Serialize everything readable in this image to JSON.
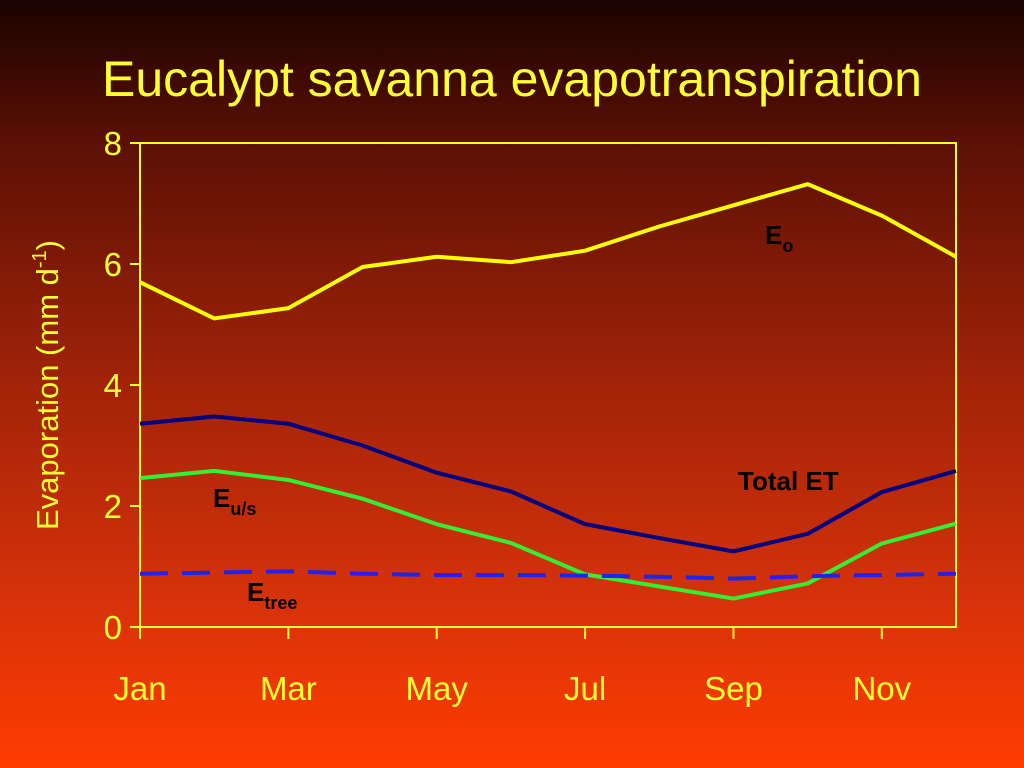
{
  "chart_data": {
    "type": "line",
    "title": "Eucalypt savanna evapotranspiration",
    "ylabel": {
      "main": "Evaporation (mm d",
      "sup": "-1",
      "close": ")"
    },
    "xlabel": "",
    "ylim": [
      0,
      8
    ],
    "yticks": [
      "0",
      "2",
      "4",
      "6",
      "8"
    ],
    "x": [
      1,
      2,
      3,
      4,
      5,
      6,
      7,
      8,
      9,
      10,
      11,
      12
    ],
    "xtick_labels": [
      {
        "x": 1,
        "label": "Jan"
      },
      {
        "x": 3,
        "label": "Mar"
      },
      {
        "x": 5,
        "label": "May"
      },
      {
        "x": 7,
        "label": "Jul"
      },
      {
        "x": 9,
        "label": "Sep"
      },
      {
        "x": 11,
        "label": "Nov"
      }
    ],
    "grid": false,
    "series": [
      {
        "key": "eo",
        "color": "#ffff00",
        "dashed": false,
        "values": [
          5.7,
          5.1,
          5.27,
          5.95,
          6.12,
          6.03,
          6.22,
          6.62,
          6.97,
          7.32,
          6.8,
          6.12
        ]
      },
      {
        "key": "total",
        "color": "#000080",
        "dashed": false,
        "values": [
          3.36,
          3.48,
          3.36,
          3.0,
          2.55,
          2.24,
          1.7,
          1.47,
          1.25,
          1.54,
          2.23,
          2.58
        ]
      },
      {
        "key": "eus",
        "color": "#33ee33",
        "dashed": false,
        "values": [
          2.46,
          2.58,
          2.43,
          2.12,
          1.7,
          1.39,
          0.87,
          0.67,
          0.47,
          0.72,
          1.38,
          1.71
        ]
      },
      {
        "key": "etree",
        "color": "#2222ee",
        "dashed": true,
        "values": [
          0.88,
          0.9,
          0.92,
          0.88,
          0.86,
          0.86,
          0.85,
          0.83,
          0.8,
          0.84,
          0.86,
          0.88
        ]
      }
    ],
    "annotations": {
      "eo": {
        "main": "E",
        "sub": "o"
      },
      "total": {
        "main": "Total ET",
        "sub": ""
      },
      "eus": {
        "main": "E",
        "sub": "u/s"
      },
      "etree": {
        "main": "E",
        "sub": "tree"
      }
    }
  }
}
